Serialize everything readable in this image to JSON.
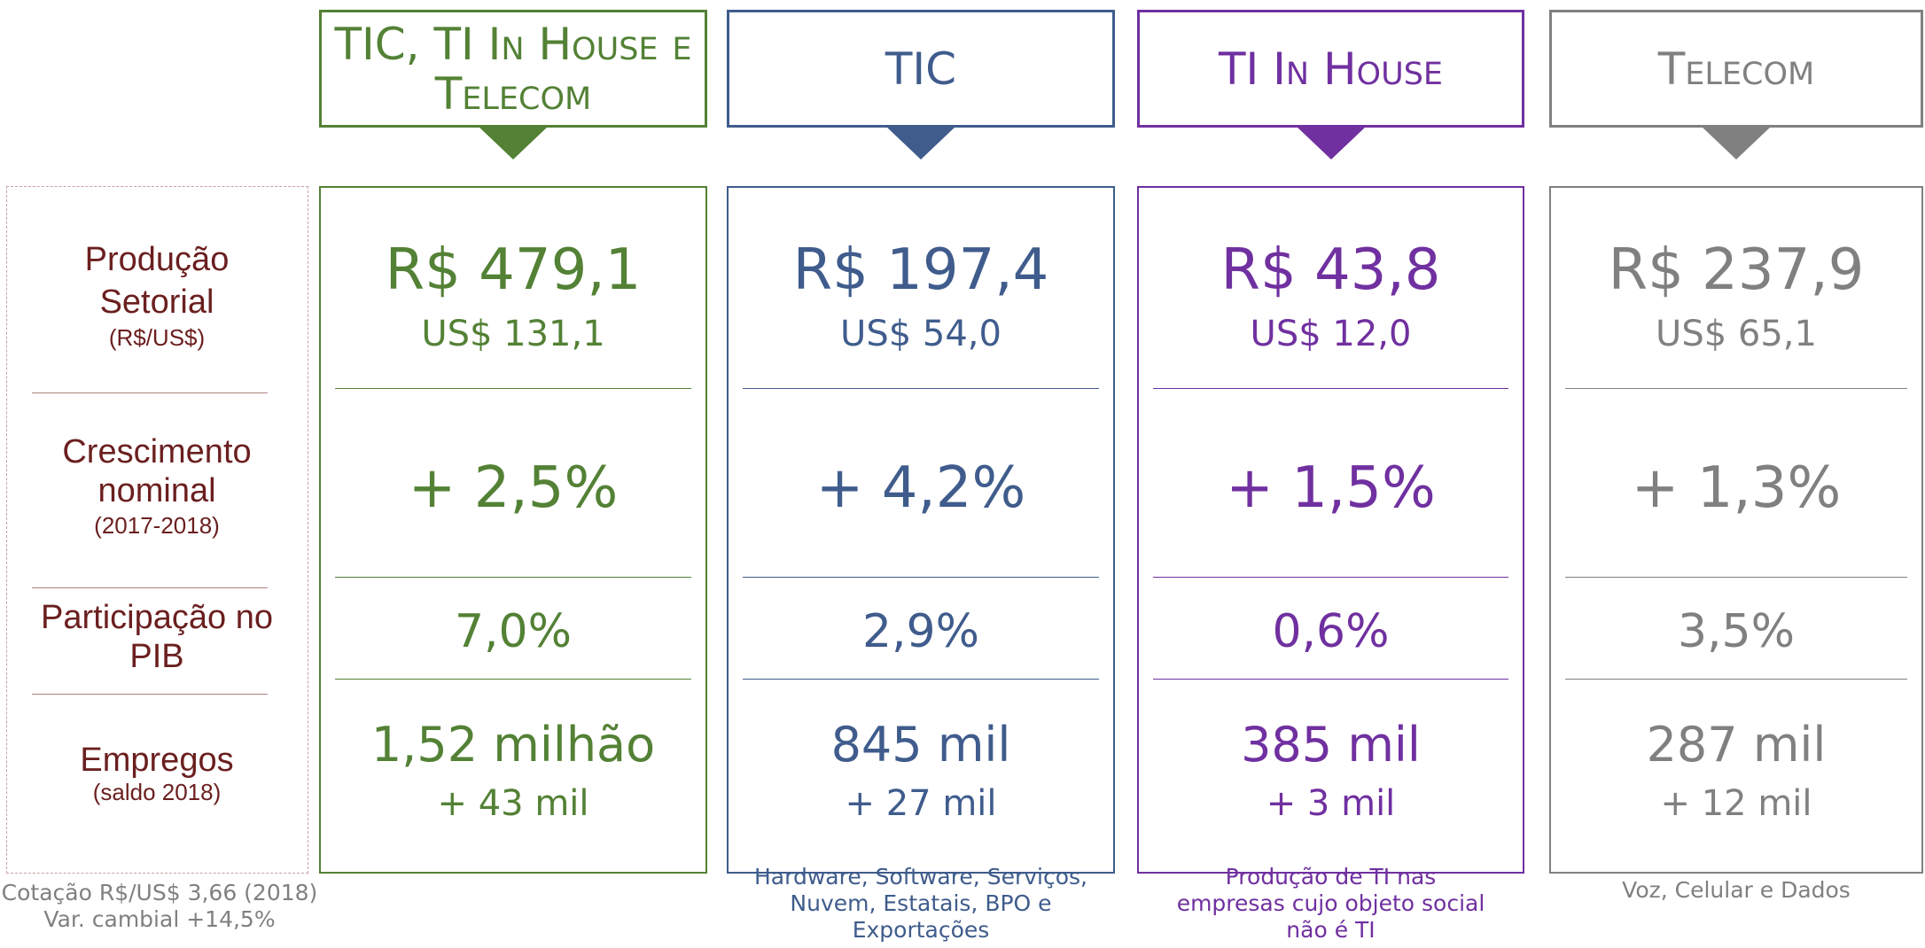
{
  "row_labels": [
    {
      "lines": [
        "Produção",
        "Setorial"
      ],
      "unit": "(R$/US$)"
    },
    {
      "lines": [
        "Crescimento",
        "nominal"
      ],
      "unit": "(2017-2018)"
    },
    {
      "lines": [
        "Participação no",
        "PIB"
      ]
    },
    {
      "lines": [
        "Empregos"
      ],
      "unit": "(saldo 2018)"
    }
  ],
  "footnote": [
    "Cotação R$/US$ 3,66 (2018)",
    "Var. cambial +14,5%"
  ],
  "columns": [
    {
      "title_lines": [
        "TIC, TI In House e",
        "Telecom"
      ],
      "color": "#538135",
      "brl": "R$ 479,1",
      "usd": "US$ 131,1",
      "growth": "+ 2,5%",
      "share": "7,0%",
      "jobs": "1,52 milhão",
      "jobs_change": "+ 43 mil"
    },
    {
      "title_lines": [
        "TIC"
      ],
      "color": "#3f5c8c",
      "brl": "R$ 197,4",
      "usd": "US$ 54,0",
      "growth": "+ 4,2%",
      "share": "2,9%",
      "jobs": "845 mil",
      "jobs_change": "+ 27 mil",
      "note_lines": [
        "Hardware, Software, Serviços,",
        "Nuvem, Estatais, BPO e",
        "Exportações"
      ]
    },
    {
      "title_lines": [
        "TI In House"
      ],
      "color": "#7030a0",
      "brl": "R$ 43,8",
      "usd": "US$ 12,0",
      "growth": "+ 1,5%",
      "share": "0,6%",
      "jobs": "385 mil",
      "jobs_change": "+ 3 mil",
      "note_lines": [
        "Produção de TI nas",
        "empresas cujo objeto social",
        "não é TI"
      ]
    },
    {
      "title_lines": [
        "Telecom"
      ],
      "color": "#808080",
      "brl": "R$ 237,9",
      "usd": "US$ 65,1",
      "growth": "+ 1,3%",
      "share": "3,5%",
      "jobs": "287 mil",
      "jobs_change": "+ 12 mil",
      "note_lines": [
        "Voz, Celular e Dados"
      ]
    }
  ]
}
